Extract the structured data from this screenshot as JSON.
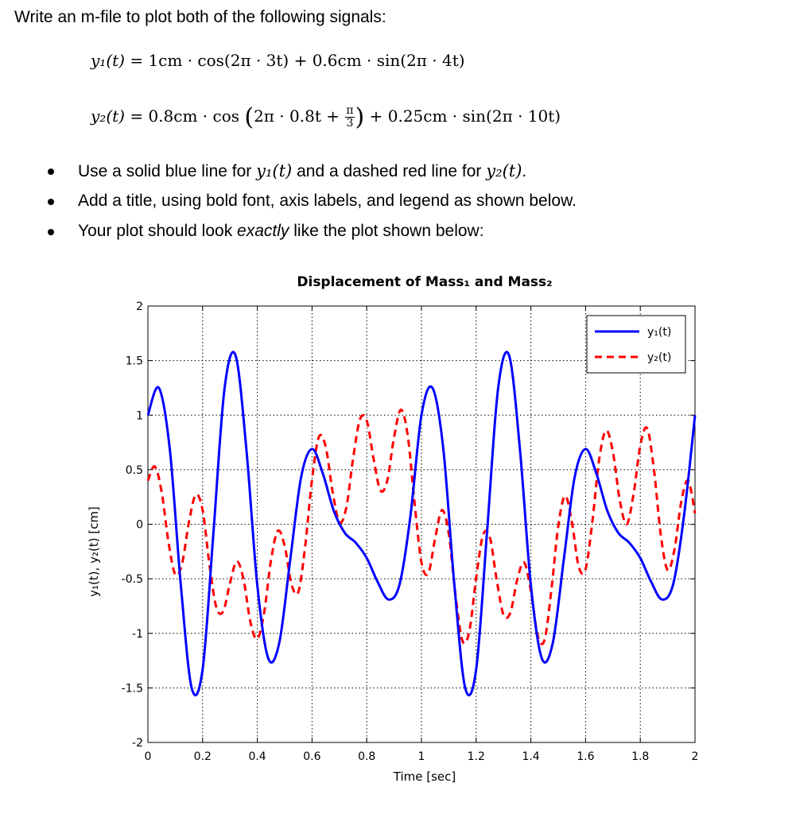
{
  "doc": {
    "intro": "Write an m-file to plot both of the following signals:",
    "eq1": {
      "lhs": "y₁(t)",
      "rhs_pre": "= 1cm · cos(2π · 3t) + 0.6cm · sin(2π · 4t)"
    },
    "eq2": {
      "lhs": "y₂(t)",
      "rhs_pre": "= 0.8cm · cos",
      "paren_body": "2π · 0.8t +",
      "frac_num": "π",
      "frac_den": "3",
      "rhs_post": "+ 0.25cm · sin(2π · 10t)"
    },
    "bullets": {
      "b1_pre": "Use a solid blue line for",
      "b1_m1": "y₁(t)",
      "b1_mid": "and a dashed red line for",
      "b1_m2": "y₂(t)",
      "b1_end": ".",
      "b2": "Add a title, using bold font, axis labels, and legend as shown below.",
      "b3_pre": "Your plot should look",
      "b3_em": "exactly",
      "b3_post": "like the plot shown below:"
    }
  },
  "chart_data": {
    "type": "line",
    "title": "Displacement of Mass₁ and Mass₂",
    "xlabel": "Time   [sec]",
    "ylabel": "y₁(t),  y₂(t)   [cm]",
    "xlim": [
      0,
      2
    ],
    "ylim": [
      -2,
      2
    ],
    "xticks": [
      0,
      0.2,
      0.4,
      0.6,
      0.8,
      1,
      1.2,
      1.4,
      1.6,
      1.8,
      2
    ],
    "yticks": [
      -2,
      -1.5,
      -1,
      -0.5,
      0,
      0.5,
      1,
      1.5,
      2
    ],
    "xtick_labels": [
      "0",
      "0.2",
      "0.4",
      "0.6",
      "0.8",
      "1",
      "1.2",
      "1.4",
      "1.6",
      "1.8",
      "2"
    ],
    "ytick_labels": [
      "-2",
      "-1.5",
      "-1",
      "-0.5",
      "0",
      "0.5",
      "1",
      "1.5",
      "2"
    ],
    "grid": true,
    "legend_position": "top-right",
    "series": [
      {
        "name": "y₁(t)",
        "color": "#0000ff",
        "style": "solid",
        "x": [
          0,
          0.04,
          0.08,
          0.12,
          0.16,
          0.2,
          0.24,
          0.28,
          0.32,
          0.36,
          0.4,
          0.44,
          0.48,
          0.52,
          0.56,
          0.6,
          0.64,
          0.68,
          0.72,
          0.76,
          0.8,
          0.84,
          0.88,
          0.92,
          0.96,
          1,
          1.04,
          1.08,
          1.12,
          1.16,
          1.2,
          1.24,
          1.28,
          1.32,
          1.36,
          1.4,
          1.44,
          1.48,
          1.52,
          1.56,
          1.6,
          1.64,
          1.68,
          1.72,
          1.76,
          1.8,
          1.84,
          1.88,
          1.92,
          1.96,
          2
        ],
        "y": [
          1,
          1.25,
          0.69,
          -0.55,
          -1.5,
          -1.33,
          -0.06,
          1.24,
          1.55,
          0.69,
          -0.56,
          -1.23,
          -1.09,
          -0.33,
          0.43,
          0.69,
          0.46,
          0.12,
          -0.08,
          -0.17,
          -0.31,
          -0.53,
          -0.69,
          -0.55,
          0.08,
          1,
          1.25,
          0.69,
          -0.55,
          -1.5,
          -1.33,
          -0.06,
          1.24,
          1.55,
          0.69,
          -0.56,
          -1.23,
          -1.09,
          -0.33,
          0.43,
          0.69,
          0.46,
          0.12,
          -0.08,
          -0.17,
          -0.31,
          -0.53,
          -0.69,
          -0.55,
          0.08,
          1
        ]
      },
      {
        "name": "y₂(t)",
        "color": "#ff0000",
        "style": "dashed",
        "x": [
          0,
          0.025,
          0.05,
          0.075,
          0.1,
          0.125,
          0.15,
          0.175,
          0.2,
          0.225,
          0.25,
          0.275,
          0.3,
          0.325,
          0.35,
          0.375,
          0.4,
          0.425,
          0.45,
          0.475,
          0.5,
          0.525,
          0.55,
          0.575,
          0.6,
          0.625,
          0.65,
          0.675,
          0.7,
          0.725,
          0.75,
          0.775,
          0.8,
          0.825,
          0.85,
          0.875,
          0.9,
          0.925,
          0.95,
          0.975,
          1,
          1.025,
          1.05,
          1.075,
          1.1,
          1.125,
          1.15,
          1.175,
          1.2,
          1.225,
          1.25,
          1.275,
          1.3,
          1.325,
          1.35,
          1.375,
          1.4,
          1.425,
          1.45,
          1.475,
          1.5,
          1.525,
          1.55,
          1.575,
          1.6,
          1.625,
          1.65,
          1.675,
          1.7,
          1.725,
          1.75,
          1.775,
          1.8,
          1.825,
          1.85,
          1.875,
          1.9,
          1.925,
          1.95,
          1.975,
          2
        ],
        "y": [
          0.4,
          0.53,
          0.3,
          -0.16,
          -0.46,
          -0.36,
          0.02,
          0.27,
          0.13,
          -0.37,
          -0.76,
          -0.8,
          -0.54,
          -0.34,
          -0.51,
          -0.9,
          -1.05,
          -0.81,
          -0.33,
          -0.06,
          -0.2,
          -0.55,
          -0.62,
          -0.2,
          0.41,
          0.8,
          0.71,
          0.3,
          0.02,
          0.15,
          0.6,
          0.96,
          0.95,
          0.6,
          0.31,
          0.4,
          0.8,
          1.05,
          0.81,
          0.19,
          -0.35,
          -0.45,
          -0.13,
          0.13,
          -0.09,
          -0.66,
          -1.07,
          -0.98,
          -0.49,
          -0.1,
          -0.12,
          -0.51,
          -0.83,
          -0.81,
          -0.51,
          -0.35,
          -0.61,
          -1.02,
          -1.06,
          -0.6,
          -0.02,
          0.26,
          0.02,
          -0.39,
          -0.41,
          0.03,
          0.6,
          0.86,
          0.66,
          0.22,
          0,
          0.27,
          0.72,
          0.88,
          0.5,
          -0.1,
          -0.42,
          -0.23,
          0.21,
          0.4,
          0.1
        ]
      }
    ]
  }
}
